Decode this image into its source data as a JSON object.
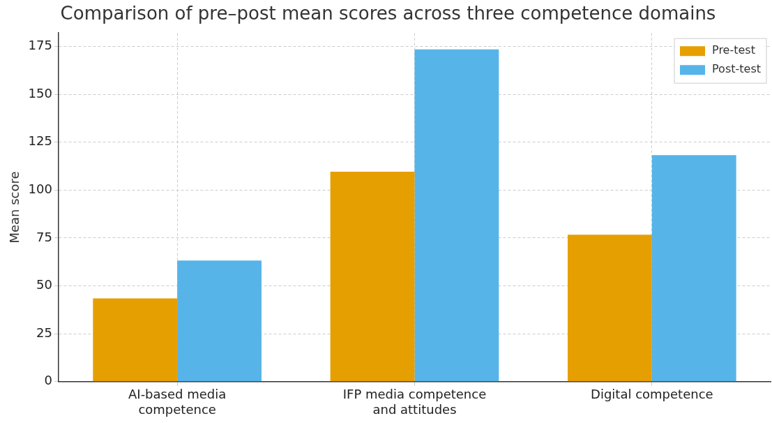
{
  "chart_data": {
    "type": "bar",
    "title": "Comparison of pre–post mean scores across three competence domains",
    "ylabel": "Mean score",
    "categories": [
      "AI-based media competence",
      "IFP media competence and attitudes",
      "Digital competence"
    ],
    "series": [
      {
        "name": "Pre-test",
        "color": "#e69f00",
        "values": [
          43.5,
          109.6,
          76.7
        ]
      },
      {
        "name": "Post-test",
        "color": "#56b4e9",
        "values": [
          63.2,
          173.4,
          118.2
        ]
      }
    ],
    "ylim": [
      0,
      182
    ],
    "yticks": [
      0,
      25,
      50,
      75,
      100,
      125,
      150,
      175
    ],
    "grid": true,
    "legend": "top right"
  }
}
